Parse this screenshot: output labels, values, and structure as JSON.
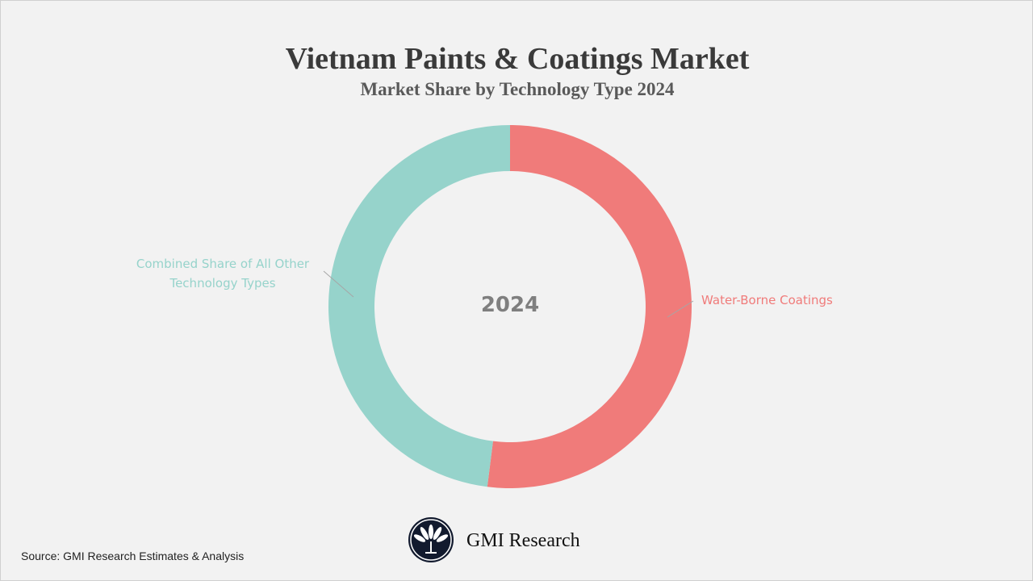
{
  "chart_data": {
    "type": "pie",
    "variant": "donut",
    "title": "Vietnam Paints & Coatings Market",
    "subtitle": "Market Share by Technology Type 2024",
    "center_label": "2024",
    "slices": [
      {
        "name": "Water-Borne Coatings",
        "value": 52,
        "color": "#f07b7a"
      },
      {
        "name": "Combined Share of All Other Technology Types",
        "value": 48,
        "color": "#96d3cb"
      }
    ]
  },
  "footer": {
    "source": "Source: GMI Research Estimates & Analysis",
    "brand": "GMI Research"
  }
}
